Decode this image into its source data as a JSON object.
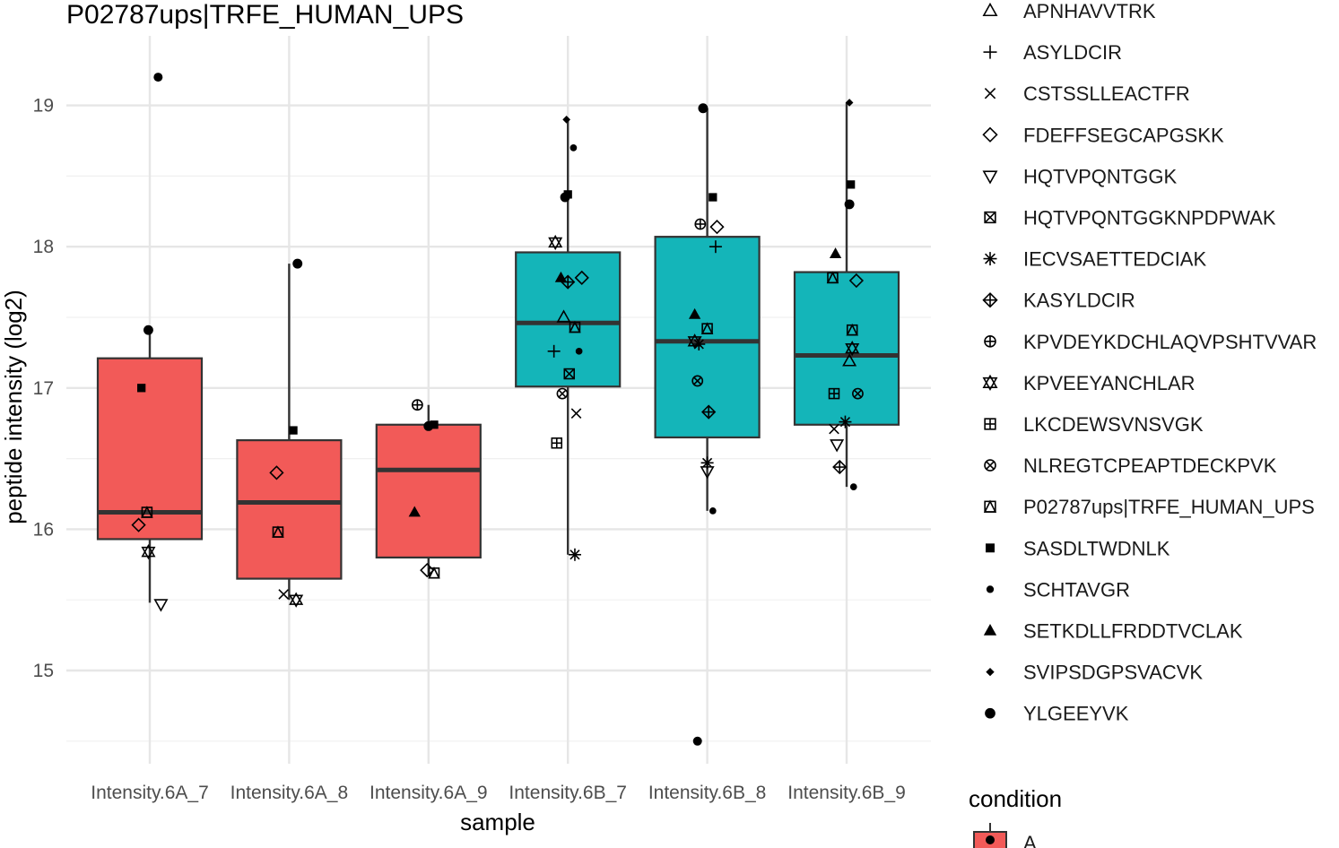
{
  "chart_data": {
    "type": "box",
    "title": "P02787ups|TRFE_HUMAN_UPS",
    "xlabel": "sample",
    "ylabel": "peptide intensity (log2)",
    "ylim": [
      14.5,
      19.45
    ],
    "yticks": [
      15,
      16,
      17,
      18,
      19
    ],
    "grid": "on",
    "legend_placement": "right",
    "categories": [
      "Intensity.6A_7",
      "Intensity.6A_8",
      "Intensity.6A_9",
      "Intensity.6B_7",
      "Intensity.6B_8",
      "Intensity.6B_9"
    ],
    "condition_colors": {
      "A": "#f25a58",
      "B": "#14b5b9"
    },
    "boxes": [
      {
        "sample": "Intensity.6A_7",
        "condition": "A",
        "q1": 15.93,
        "median": 16.12,
        "q3": 17.21,
        "whisker_low": 15.48,
        "whisker_high": 17.42
      },
      {
        "sample": "Intensity.6A_8",
        "condition": "A",
        "q1": 15.65,
        "median": 16.19,
        "q3": 16.63,
        "whisker_low": 15.5,
        "whisker_high": 17.88
      },
      {
        "sample": "Intensity.6A_9",
        "condition": "A",
        "q1": 15.8,
        "median": 16.42,
        "q3": 16.74,
        "whisker_low": 15.68,
        "whisker_high": 16.88
      },
      {
        "sample": "Intensity.6B_7",
        "condition": "B",
        "q1": 17.01,
        "median": 17.46,
        "q3": 17.96,
        "whisker_low": 15.82,
        "whisker_high": 18.9
      },
      {
        "sample": "Intensity.6B_8",
        "condition": "B",
        "q1": 16.65,
        "median": 17.33,
        "q3": 18.07,
        "whisker_low": 16.13,
        "whisker_high": 18.98
      },
      {
        "sample": "Intensity.6B_9",
        "condition": "B",
        "q1": 16.74,
        "median": 17.23,
        "q3": 17.82,
        "whisker_low": 16.3,
        "whisker_high": 19.02
      }
    ],
    "outliers": [
      {
        "sample": "Intensity.6A_7",
        "y": 19.2
      },
      {
        "sample": "Intensity.6B_8",
        "y": 14.5
      }
    ],
    "points": [
      {
        "sample": "Intensity.6A_7",
        "y": 17.0,
        "dx": -0.06,
        "peptide": "SASDLTWDNLK"
      },
      {
        "sample": "Intensity.6A_7",
        "y": 17.41,
        "dx": -0.01,
        "peptide": "YLGEEYVK"
      },
      {
        "sample": "Intensity.6A_7",
        "y": 16.12,
        "dx": -0.02,
        "peptide": "P02787ups|TRFE_HUMAN_UPS"
      },
      {
        "sample": "Intensity.6A_7",
        "y": 16.03,
        "dx": -0.08,
        "peptide": "FDEFFSEGCAPGSKK"
      },
      {
        "sample": "Intensity.6A_7",
        "y": 15.84,
        "dx": -0.01,
        "peptide": "KPVEEYANCHLAR"
      },
      {
        "sample": "Intensity.6A_7",
        "y": 15.47,
        "dx": 0.08,
        "peptide": "HQTVPQNTGGK"
      },
      {
        "sample": "Intensity.6A_8",
        "y": 17.88,
        "dx": 0.06,
        "peptide": "YLGEEYVK"
      },
      {
        "sample": "Intensity.6A_8",
        "y": 16.7,
        "dx": 0.03,
        "peptide": "SASDLTWDNLK"
      },
      {
        "sample": "Intensity.6A_8",
        "y": 16.4,
        "dx": -0.09,
        "peptide": "FDEFFSEGCAPGSKK"
      },
      {
        "sample": "Intensity.6A_8",
        "y": 15.98,
        "dx": -0.08,
        "peptide": "P02787ups|TRFE_HUMAN_UPS"
      },
      {
        "sample": "Intensity.6A_8",
        "y": 15.54,
        "dx": -0.04,
        "peptide": "CSTSSLLEACTFR"
      },
      {
        "sample": "Intensity.6A_8",
        "y": 15.5,
        "dx": 0.05,
        "peptide": "KPVEEYANCHLAR"
      },
      {
        "sample": "Intensity.6A_9",
        "y": 16.88,
        "dx": -0.08,
        "peptide": "KPVDEYKDCHLAQVPSHTVVAR"
      },
      {
        "sample": "Intensity.6A_9",
        "y": 16.74,
        "dx": 0.04,
        "peptide": "SASDLTWDNLK"
      },
      {
        "sample": "Intensity.6A_9",
        "y": 16.73,
        "dx": 0.0,
        "peptide": "YLGEEYVK"
      },
      {
        "sample": "Intensity.6A_9",
        "y": 16.12,
        "dx": -0.1,
        "peptide": "SETKDLLFRDDTVCLAK"
      },
      {
        "sample": "Intensity.6A_9",
        "y": 15.71,
        "dx": -0.01,
        "peptide": "FDEFFSEGCAPGSKK"
      },
      {
        "sample": "Intensity.6A_9",
        "y": 15.69,
        "dx": 0.04,
        "peptide": "P02787ups|TRFE_HUMAN_UPS"
      },
      {
        "sample": "Intensity.6B_7",
        "y": 18.9,
        "dx": -0.01,
        "peptide": "SVIPSDGPSVACVK"
      },
      {
        "sample": "Intensity.6B_7",
        "y": 18.7,
        "dx": 0.04,
        "peptide": "SCHTAVGR"
      },
      {
        "sample": "Intensity.6B_7",
        "y": 18.37,
        "dx": 0.0,
        "peptide": "SASDLTWDNLK"
      },
      {
        "sample": "Intensity.6B_7",
        "y": 18.35,
        "dx": -0.02,
        "peptide": "YLGEEYVK"
      },
      {
        "sample": "Intensity.6B_7",
        "y": 18.03,
        "dx": -0.09,
        "peptide": "KPVEEYANCHLAR"
      },
      {
        "sample": "Intensity.6B_7",
        "y": 17.78,
        "dx": -0.05,
        "peptide": "SETKDLLFRDDTVCLAK"
      },
      {
        "sample": "Intensity.6B_7",
        "y": 17.78,
        "dx": 0.1,
        "peptide": "FDEFFSEGCAPGSKK"
      },
      {
        "sample": "Intensity.6B_7",
        "y": 17.75,
        "dx": 0.0,
        "peptide": "KASYLDCIR"
      },
      {
        "sample": "Intensity.6B_7",
        "y": 17.5,
        "dx": -0.03,
        "peptide": "APNHAVVTRK"
      },
      {
        "sample": "Intensity.6B_7",
        "y": 17.43,
        "dx": 0.05,
        "peptide": "P02787ups|TRFE_HUMAN_UPS"
      },
      {
        "sample": "Intensity.6B_7",
        "y": 17.26,
        "dx": -0.1,
        "peptide": "ASYLDCIR"
      },
      {
        "sample": "Intensity.6B_7",
        "y": 17.26,
        "dx": 0.08,
        "peptide": "SCHTAVGR"
      },
      {
        "sample": "Intensity.6B_7",
        "y": 17.1,
        "dx": 0.01,
        "peptide": "HQTVPQNTGGKNPDPWAK"
      },
      {
        "sample": "Intensity.6B_7",
        "y": 16.96,
        "dx": -0.04,
        "peptide": "NLREGTCPEAPTDECKPVK"
      },
      {
        "sample": "Intensity.6B_7",
        "y": 16.82,
        "dx": 0.06,
        "peptide": "CSTSSLLEACTFR"
      },
      {
        "sample": "Intensity.6B_7",
        "y": 16.61,
        "dx": -0.08,
        "peptide": "LKCDEWSVNSVGK"
      },
      {
        "sample": "Intensity.6B_7",
        "y": 15.82,
        "dx": 0.05,
        "peptide": "IECVSAETTEDCIAK"
      },
      {
        "sample": "Intensity.6B_8",
        "y": 18.98,
        "dx": -0.03,
        "peptide": "YLGEEYVK"
      },
      {
        "sample": "Intensity.6B_8",
        "y": 18.35,
        "dx": 0.04,
        "peptide": "SASDLTWDNLK"
      },
      {
        "sample": "Intensity.6B_8",
        "y": 18.16,
        "dx": -0.05,
        "peptide": "KPVDEYKDCHLAQVPSHTVVAR"
      },
      {
        "sample": "Intensity.6B_8",
        "y": 18.14,
        "dx": 0.07,
        "peptide": "FDEFFSEGCAPGSKK"
      },
      {
        "sample": "Intensity.6B_8",
        "y": 18.0,
        "dx": 0.06,
        "peptide": "ASYLDCIR"
      },
      {
        "sample": "Intensity.6B_8",
        "y": 17.52,
        "dx": -0.09,
        "peptide": "SETKDLLFRDDTVCLAK"
      },
      {
        "sample": "Intensity.6B_8",
        "y": 17.42,
        "dx": 0.0,
        "peptide": "P02787ups|TRFE_HUMAN_UPS"
      },
      {
        "sample": "Intensity.6B_8",
        "y": 17.33,
        "dx": -0.09,
        "peptide": "KPVEEYANCHLAR"
      },
      {
        "sample": "Intensity.6B_8",
        "y": 17.31,
        "dx": -0.06,
        "peptide": "IECVSAETTEDCIAK"
      },
      {
        "sample": "Intensity.6B_8",
        "y": 17.05,
        "dx": -0.07,
        "peptide": "NLREGTCPEAPTDECKPVK"
      },
      {
        "sample": "Intensity.6B_8",
        "y": 16.83,
        "dx": 0.01,
        "peptide": "KASYLDCIR"
      },
      {
        "sample": "Intensity.6B_8",
        "y": 16.47,
        "dx": 0.0,
        "peptide": "IECVSAETTEDCIAK"
      },
      {
        "sample": "Intensity.6B_8",
        "y": 16.41,
        "dx": 0.0,
        "peptide": "HQTVPQNTGGK"
      },
      {
        "sample": "Intensity.6B_8",
        "y": 16.13,
        "dx": 0.04,
        "peptide": "SCHTAVGR"
      },
      {
        "sample": "Intensity.6B_9",
        "y": 19.02,
        "dx": 0.02,
        "peptide": "SVIPSDGPSVACVK"
      },
      {
        "sample": "Intensity.6B_9",
        "y": 18.44,
        "dx": 0.03,
        "peptide": "SASDLTWDNLK"
      },
      {
        "sample": "Intensity.6B_9",
        "y": 18.3,
        "dx": 0.02,
        "peptide": "YLGEEYVK"
      },
      {
        "sample": "Intensity.6B_9",
        "y": 17.95,
        "dx": -0.08,
        "peptide": "SETKDLLFRDDTVCLAK"
      },
      {
        "sample": "Intensity.6B_9",
        "y": 17.78,
        "dx": -0.1,
        "peptide": "P02787ups|TRFE_HUMAN_UPS"
      },
      {
        "sample": "Intensity.6B_9",
        "y": 17.76,
        "dx": 0.07,
        "peptide": "FDEFFSEGCAPGSKK"
      },
      {
        "sample": "Intensity.6B_9",
        "y": 17.41,
        "dx": 0.04,
        "peptide": "P02787ups|TRFE_HUMAN_UPS"
      },
      {
        "sample": "Intensity.6B_9",
        "y": 17.28,
        "dx": 0.04,
        "peptide": "KPVEEYANCHLAR"
      },
      {
        "sample": "Intensity.6B_9",
        "y": 17.19,
        "dx": 0.02,
        "peptide": "APNHAVVTRK"
      },
      {
        "sample": "Intensity.6B_9",
        "y": 16.96,
        "dx": -0.09,
        "peptide": "LKCDEWSVNSVGK"
      },
      {
        "sample": "Intensity.6B_9",
        "y": 16.96,
        "dx": 0.08,
        "peptide": "NLREGTCPEAPTDECKPVK"
      },
      {
        "sample": "Intensity.6B_9",
        "y": 16.76,
        "dx": -0.01,
        "peptide": "IECVSAETTEDCIAK"
      },
      {
        "sample": "Intensity.6B_9",
        "y": 16.71,
        "dx": -0.09,
        "peptide": "CSTSSLLEACTFR"
      },
      {
        "sample": "Intensity.6B_9",
        "y": 16.6,
        "dx": -0.07,
        "peptide": "HQTVPQNTGGK"
      },
      {
        "sample": "Intensity.6B_9",
        "y": 16.44,
        "dx": -0.05,
        "peptide": "KASYLDCIR"
      },
      {
        "sample": "Intensity.6B_9",
        "y": 16.3,
        "dx": 0.05,
        "peptide": "SCHTAVGR"
      }
    ],
    "legend_peptides": [
      {
        "name": "APNHAVVTRK",
        "shape": "triangle-open"
      },
      {
        "name": "ASYLDCIR",
        "shape": "plus"
      },
      {
        "name": "CSTSSLLEACTFR",
        "shape": "cross"
      },
      {
        "name": "FDEFFSEGCAPGSKK",
        "shape": "diamond-open"
      },
      {
        "name": "HQTVPQNTGGK",
        "shape": "triangle-down-open"
      },
      {
        "name": "HQTVPQNTGGKNPDPWAK",
        "shape": "square-cross"
      },
      {
        "name": "IECVSAETTEDCIAK",
        "shape": "asterisk"
      },
      {
        "name": "KASYLDCIR",
        "shape": "diamond-plus"
      },
      {
        "name": "KPVDEYKDCHLAQVPSHTVVAR",
        "shape": "circle-plus"
      },
      {
        "name": "KPVEEYANCHLAR",
        "shape": "star-of-david"
      },
      {
        "name": "LKCDEWSVNSVGK",
        "shape": "square-plus"
      },
      {
        "name": "NLREGTCPEAPTDECKPVK",
        "shape": "circle-cross"
      },
      {
        "name": "P02787ups|TRFE_HUMAN_UPS",
        "shape": "square-triangle"
      },
      {
        "name": "SASDLTWDNLK",
        "shape": "square-filled"
      },
      {
        "name": "SCHTAVGR",
        "shape": "circle-filled-small"
      },
      {
        "name": "SETKDLLFRDDTVCLAK",
        "shape": "triangle-filled"
      },
      {
        "name": "SVIPSDGPSVACVK",
        "shape": "diamond-filled"
      },
      {
        "name": "YLGEEYVK",
        "shape": "circle-filled"
      }
    ],
    "legend_condition": {
      "title": "condition",
      "items": [
        {
          "name": "A",
          "color": "#f25a58"
        }
      ]
    }
  }
}
